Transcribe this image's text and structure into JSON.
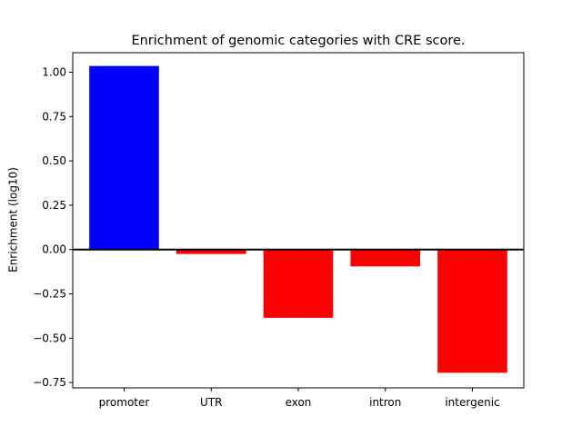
{
  "chart_data": {
    "type": "bar",
    "title": "Enrichment of genomic categories with CRE score.",
    "xlabel": "",
    "ylabel": "Enrichment (log10)",
    "categories": [
      "promoter",
      "UTR",
      "exon",
      "intron",
      "intergenic"
    ],
    "values": [
      1.035,
      -0.025,
      -0.385,
      -0.095,
      -0.695
    ],
    "ylim": [
      -0.78,
      1.11
    ],
    "yticks": [
      -0.75,
      -0.5,
      -0.25,
      0.0,
      0.25,
      0.5,
      0.75,
      1.0
    ],
    "ytick_labels": [
      "−0.75",
      "−0.50",
      "−0.25",
      "0.00",
      "0.25",
      "0.50",
      "0.75",
      "1.00"
    ],
    "colors": {
      "positive": "#0000ff",
      "negative": "#ff0000",
      "zero_line": "#000000"
    },
    "zero_line": true,
    "grid": false,
    "legend": "none"
  }
}
